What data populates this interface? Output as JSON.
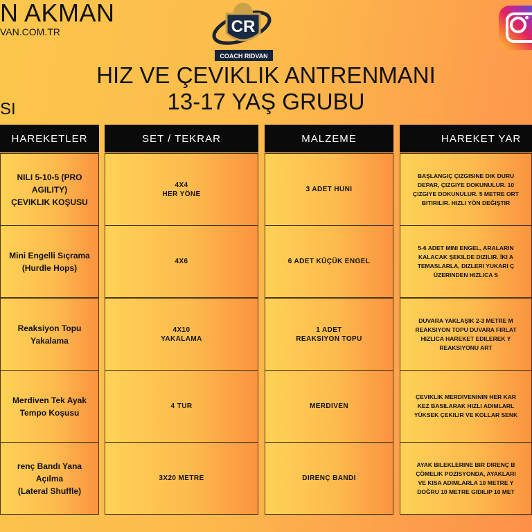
{
  "header": {
    "brand_name": "N AKMAN",
    "brand_url": "VAN.COM.TR",
    "subtitle_fragment": "SI",
    "logo_text": "CR",
    "logo_caption": "COACH RIDVAN",
    "title_line1": "HIZ VE ÇEVIKLIK ANTRENMANI",
    "title_line2": "13-17 YAŞ GRUBU",
    "social_icon": "instagram-icon"
  },
  "colors": {
    "header_bg": "#0a0a0a",
    "cell_start": "#fed256",
    "cell_end": "#fc9340"
  },
  "table": {
    "columns": [
      "HAREKETLER",
      "SET / TEKRAR",
      "MALZEME",
      "HAREKET YAR"
    ],
    "rows": [
      {
        "exercise": "NILI 5-10-5 (PRO AGILITY)\nÇEVIKLIK KOŞUSU",
        "sets": "4X4\nHER YÖNE",
        "equipment": "3 ADET HUNI",
        "description": "BAŞLANGIÇ ÇIZGISINE DIK DURU\nDEPAR, ÇIZGIYE DOKUNULUR. 10\nÇIZGIYE DOKUNULUR. 5 METRE ORT\nBITIRILIR. HIZLI YÖN DEĞIŞTIR"
      },
      {
        "exercise": "Mini Engelli Sıçrama\n(Hurdle Hops)",
        "sets": "4X6",
        "equipment": "6 ADET KÜÇÜK ENGEL",
        "description": "5-6 ADET MINI ENGEL, ARALARIN\nKALACAK ŞEKILDE DIZILIR. İKI A\nTEMASLARLA, DIZLERI YUKARI Ç\nÜZERINDEN HIZLICA S"
      },
      {
        "exercise": "Reaksiyon Topu\nYakalama",
        "sets": "4X10\nYAKALAMA",
        "equipment": "1 ADET\nREAKSIYON TOPU",
        "description": "DUVARA YAKLAŞIK 2-3 METRE M\nREAKSIYON TOPU DUVARA FIRLAT\nHIZLICA HAREKET EDILEREK Y\nREAKSIYONU ART"
      },
      {
        "exercise": "Merdiven Tek Ayak\nTempo Koşusu",
        "sets": "4 TUR",
        "equipment": "MERDIVEN",
        "description": "ÇEVIKLIK MERDIVENININ HER KAR\nKEZ BASILARAK HIZLI ADIMLARL\nYÜKSEK ÇEKILIR VE KOLLAR SENK"
      },
      {
        "exercise": "renç Bandı Yana Açılma\n(Lateral Shuffle)",
        "sets": "3X20 METRE",
        "equipment": "DIRENÇ BANDI",
        "description": "AYAK BILEKLERINE BIR DIRENÇ B\nÇÖMELIK POZISYONDA, AYAKLARI\nVE KISA ADIMLARLA 10 METRE Y\nDOĞRU 10 METRE GIDILIP 10 MET"
      }
    ]
  }
}
